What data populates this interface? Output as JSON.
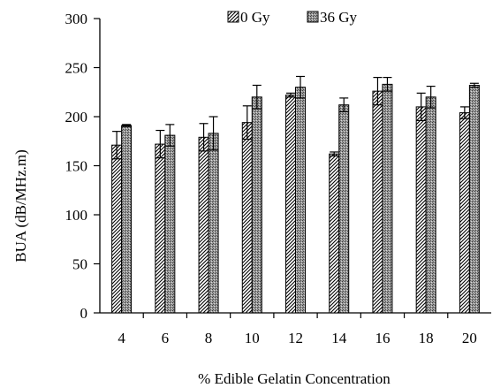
{
  "chart_data": {
    "type": "bar",
    "xlabel": "% Edible Gelatin Concentration",
    "ylabel": "BUA (dB/MHz.m)",
    "ylim": [
      0,
      300
    ],
    "yticks": [
      0,
      50,
      100,
      150,
      200,
      250,
      300
    ],
    "categories": [
      "4",
      "6",
      "8",
      "10",
      "12",
      "14",
      "16",
      "18",
      "20"
    ],
    "series": [
      {
        "name": "0 Gy",
        "values": [
          171,
          172,
          179,
          194,
          222,
          162,
          226,
          210,
          204
        ],
        "errors": [
          14,
          14,
          14,
          17,
          2,
          2,
          14,
          14,
          6
        ],
        "pattern": "diagonal-hatch"
      },
      {
        "name": "36 Gy",
        "values": [
          191,
          181,
          183,
          220,
          230,
          212,
          233,
          220,
          232
        ],
        "errors": [
          1,
          11,
          17,
          12,
          11,
          7,
          7,
          11,
          2
        ],
        "pattern": "crosshatch-gray"
      }
    ],
    "grid": false,
    "legend_position": "top"
  }
}
